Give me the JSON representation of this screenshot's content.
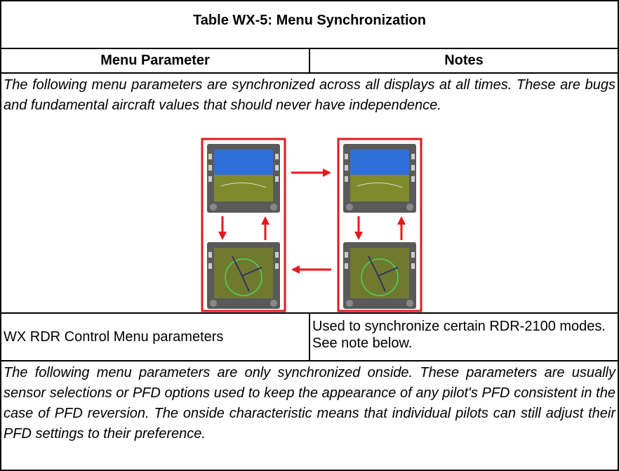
{
  "table": {
    "title": "Table WX-5: Menu Synchronization",
    "columns": [
      "Menu Parameter",
      "Notes"
    ],
    "intro": "The following menu parameters are synchronized across all displays at all times. These are bugs and fundamental aircraft values that should never have independence.",
    "rows": [
      [
        "WX RDR Control Menu parameters",
        "Used to synchronize certain RDR-2100 modes. See note below."
      ]
    ],
    "outro": "The following menu parameters are only synchronized onside. These parameters are usually sensor selections or PFD options used to keep the appearance of any pilot's PFD consistent in the case of PFD reversion. The onside characteristic means that individual pilots can still adjust their PFD settings to their preference."
  }
}
